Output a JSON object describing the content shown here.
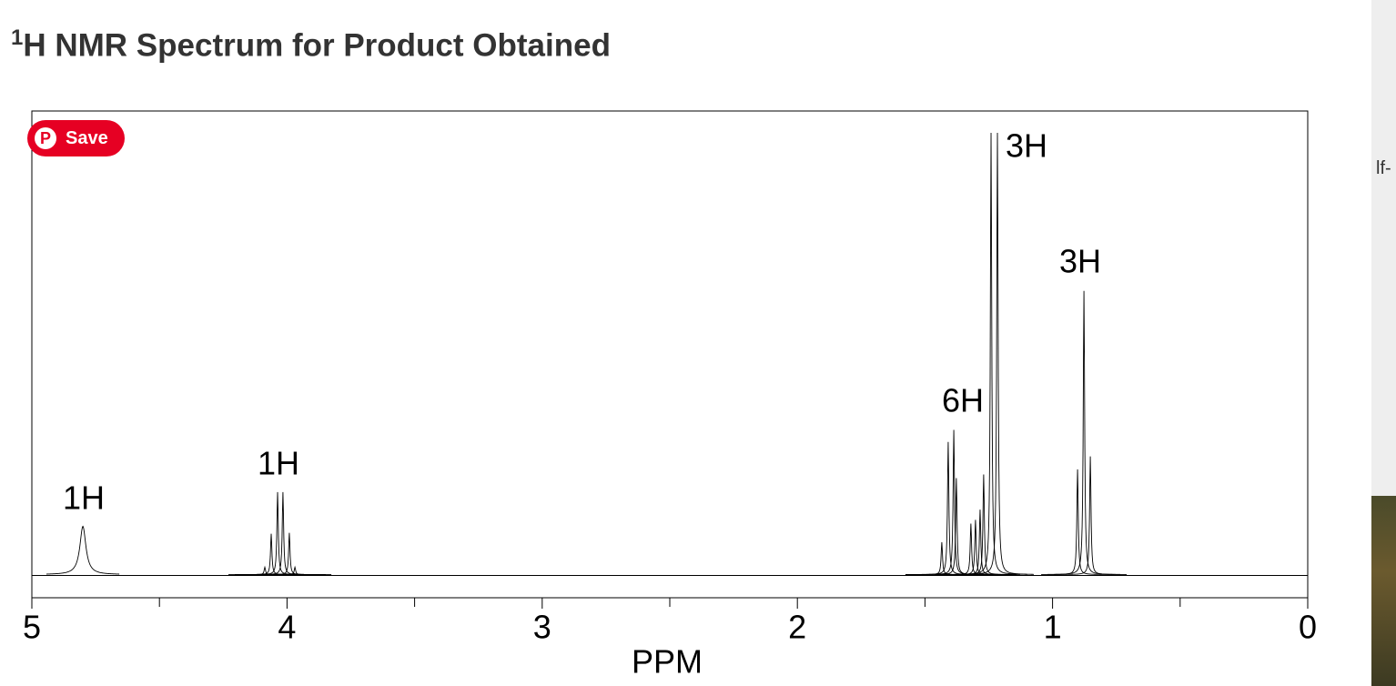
{
  "title_superscript": "1",
  "title": "H NMR Spectrum for Product Obtained",
  "save_button": "Save",
  "side_text": "lf-",
  "chart_data": {
    "type": "spectrum",
    "xlabel": "PPM",
    "color": "#000000",
    "xlim": [
      5,
      0
    ],
    "xticks": [
      5,
      4,
      3,
      2,
      1,
      0
    ],
    "xminor_ticks": [
      4.5,
      3.5,
      2.5,
      1.5,
      0.5
    ],
    "ylim": [
      -5,
      100
    ],
    "x": [
      4.8,
      4.087,
      4.062,
      4.037,
      4.016,
      3.991,
      3.969,
      1.434,
      1.409,
      1.387,
      1.377,
      1.32,
      1.302,
      1.284,
      1.27,
      1.241,
      1.216,
      0.902,
      0.877,
      0.852
    ],
    "values": [
      10.4,
      1.6,
      8.8,
      17.8,
      17.8,
      9,
      1.6,
      7,
      28.6,
      31.2,
      20.8,
      11,
      11.8,
      14,
      21.6,
      95.3,
      95.3,
      22.7,
      61.2,
      25.5
    ],
    "annotations": [
      "1H",
      "1H",
      "6H",
      "3H",
      "3H"
    ]
  }
}
